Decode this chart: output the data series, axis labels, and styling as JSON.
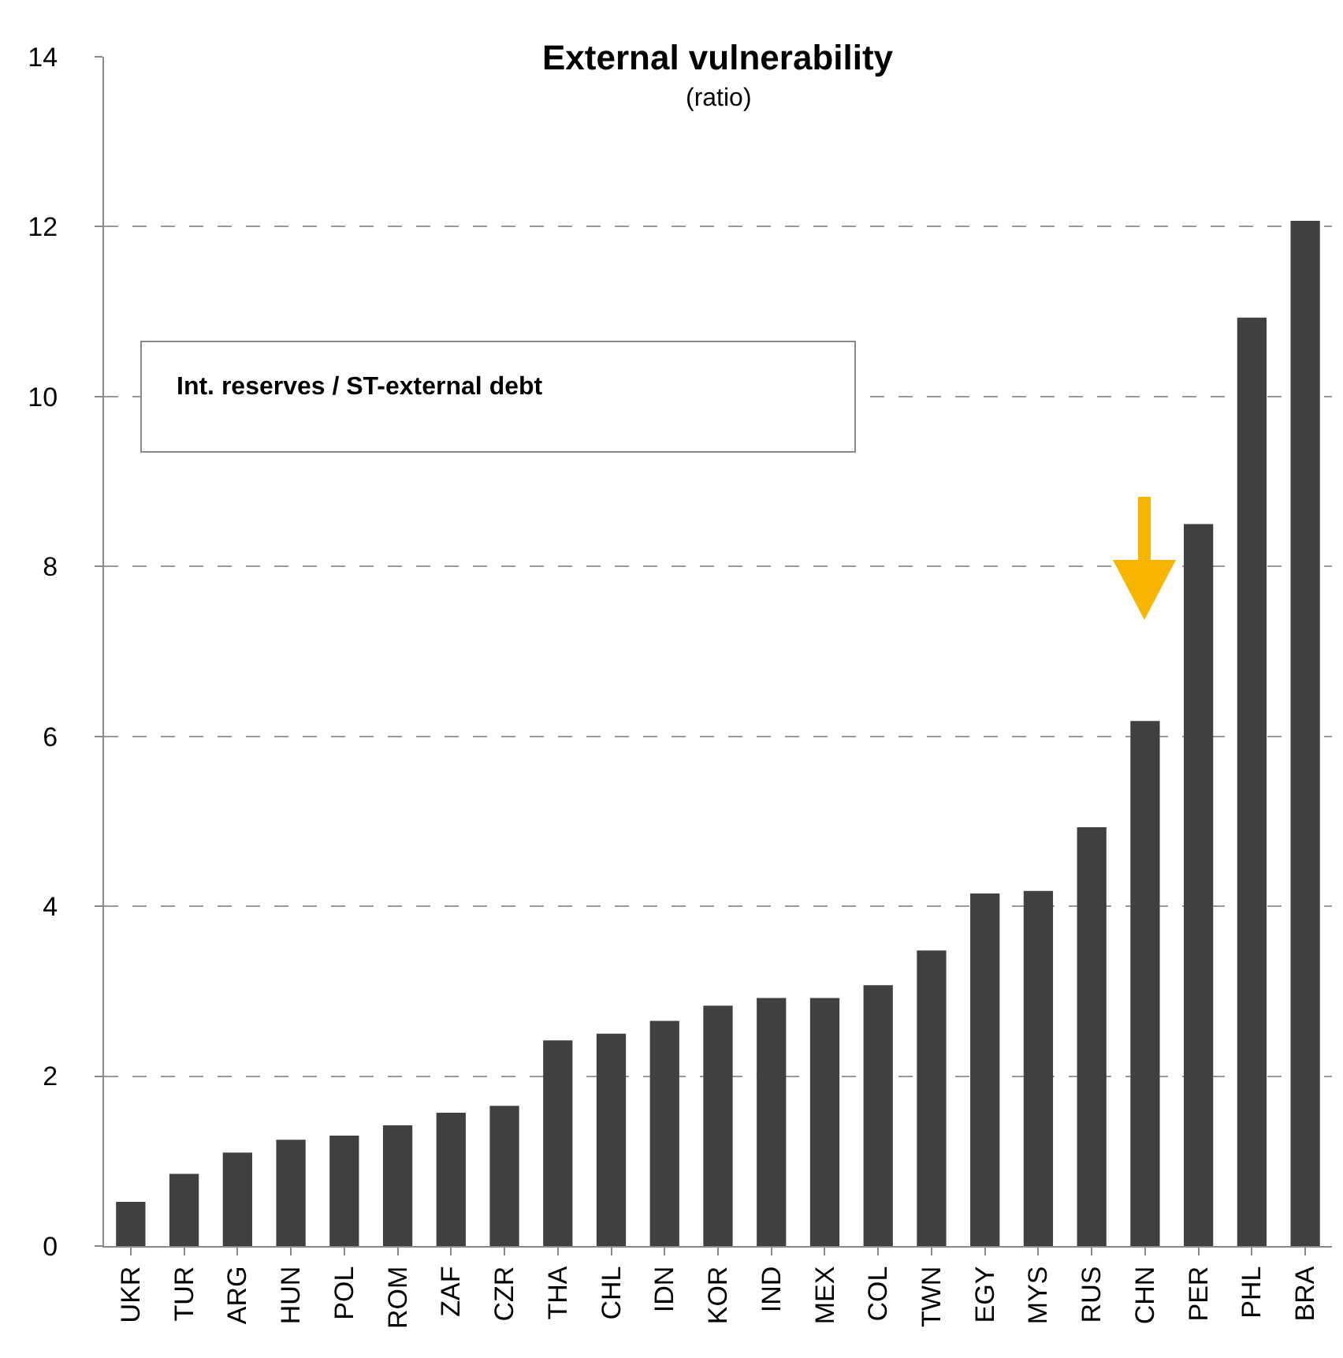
{
  "chart_data": {
    "type": "bar",
    "title": "External vulnerability",
    "subtitle": "(ratio)",
    "annotations": [
      "Int. reserves / ST-external debt"
    ],
    "categories": [
      "UKR",
      "TUR",
      "ARG",
      "HUN",
      "POL",
      "ROM",
      "ZAF",
      "CZR",
      "THA",
      "CHL",
      "IDN",
      "KOR",
      "IND",
      "MEX",
      "COL",
      "TWN",
      "EGY",
      "MYS",
      "RUS",
      "CHN",
      "PER",
      "PHL",
      "BRA"
    ],
    "values": [
      0.52,
      0.85,
      1.1,
      1.25,
      1.3,
      1.42,
      1.57,
      1.65,
      2.42,
      2.5,
      2.65,
      2.83,
      2.92,
      2.92,
      3.07,
      3.48,
      4.15,
      4.18,
      4.93,
      6.18,
      8.5,
      10.93,
      12.07
    ],
    "color": "#404040",
    "ylim": [
      0,
      14
    ],
    "yticks": [
      0,
      2,
      4,
      6,
      8,
      10,
      12,
      14
    ],
    "grid": "y",
    "legend": false
  }
}
